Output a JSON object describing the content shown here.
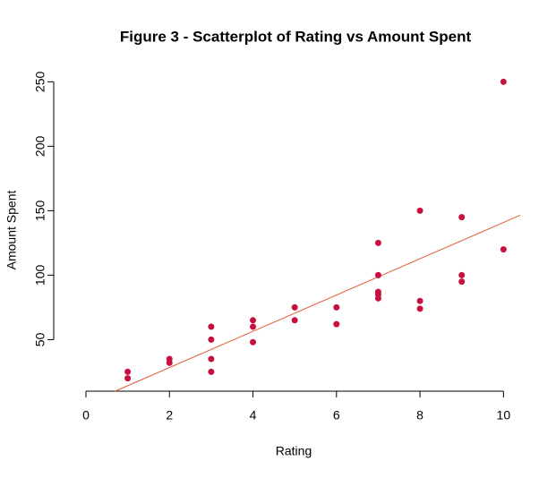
{
  "chart_data": {
    "type": "scatter",
    "title": "Figure 3 - Scatterplot of Rating vs Amount Spent",
    "x_label": "Rating",
    "y_label": "Amount Spent",
    "color": "#c8103f",
    "x": [
      1,
      1,
      2,
      2,
      3,
      3,
      3,
      3,
      4,
      4,
      4,
      5,
      5,
      6,
      6,
      7,
      7,
      7,
      7,
      7,
      8,
      8,
      8,
      9,
      9,
      9,
      10,
      10
    ],
    "values": [
      25,
      20,
      35,
      32,
      60,
      50,
      35,
      25,
      65,
      60,
      48,
      75,
      65,
      75,
      62,
      125,
      100,
      87,
      85,
      82,
      150,
      80,
      74,
      145,
      100,
      95,
      250,
      120
    ],
    "trendline": {
      "x": [
        0.7,
        10.4
      ],
      "y": [
        10,
        146.5
      ],
      "color": "#e0603a"
    },
    "xlim": [
      -0.6,
      10.4
    ],
    "ylim": [
      10,
      260
    ],
    "xticks": [
      0,
      2,
      4,
      6,
      8,
      10
    ],
    "yticks": [
      50,
      100,
      150,
      200,
      250
    ]
  }
}
